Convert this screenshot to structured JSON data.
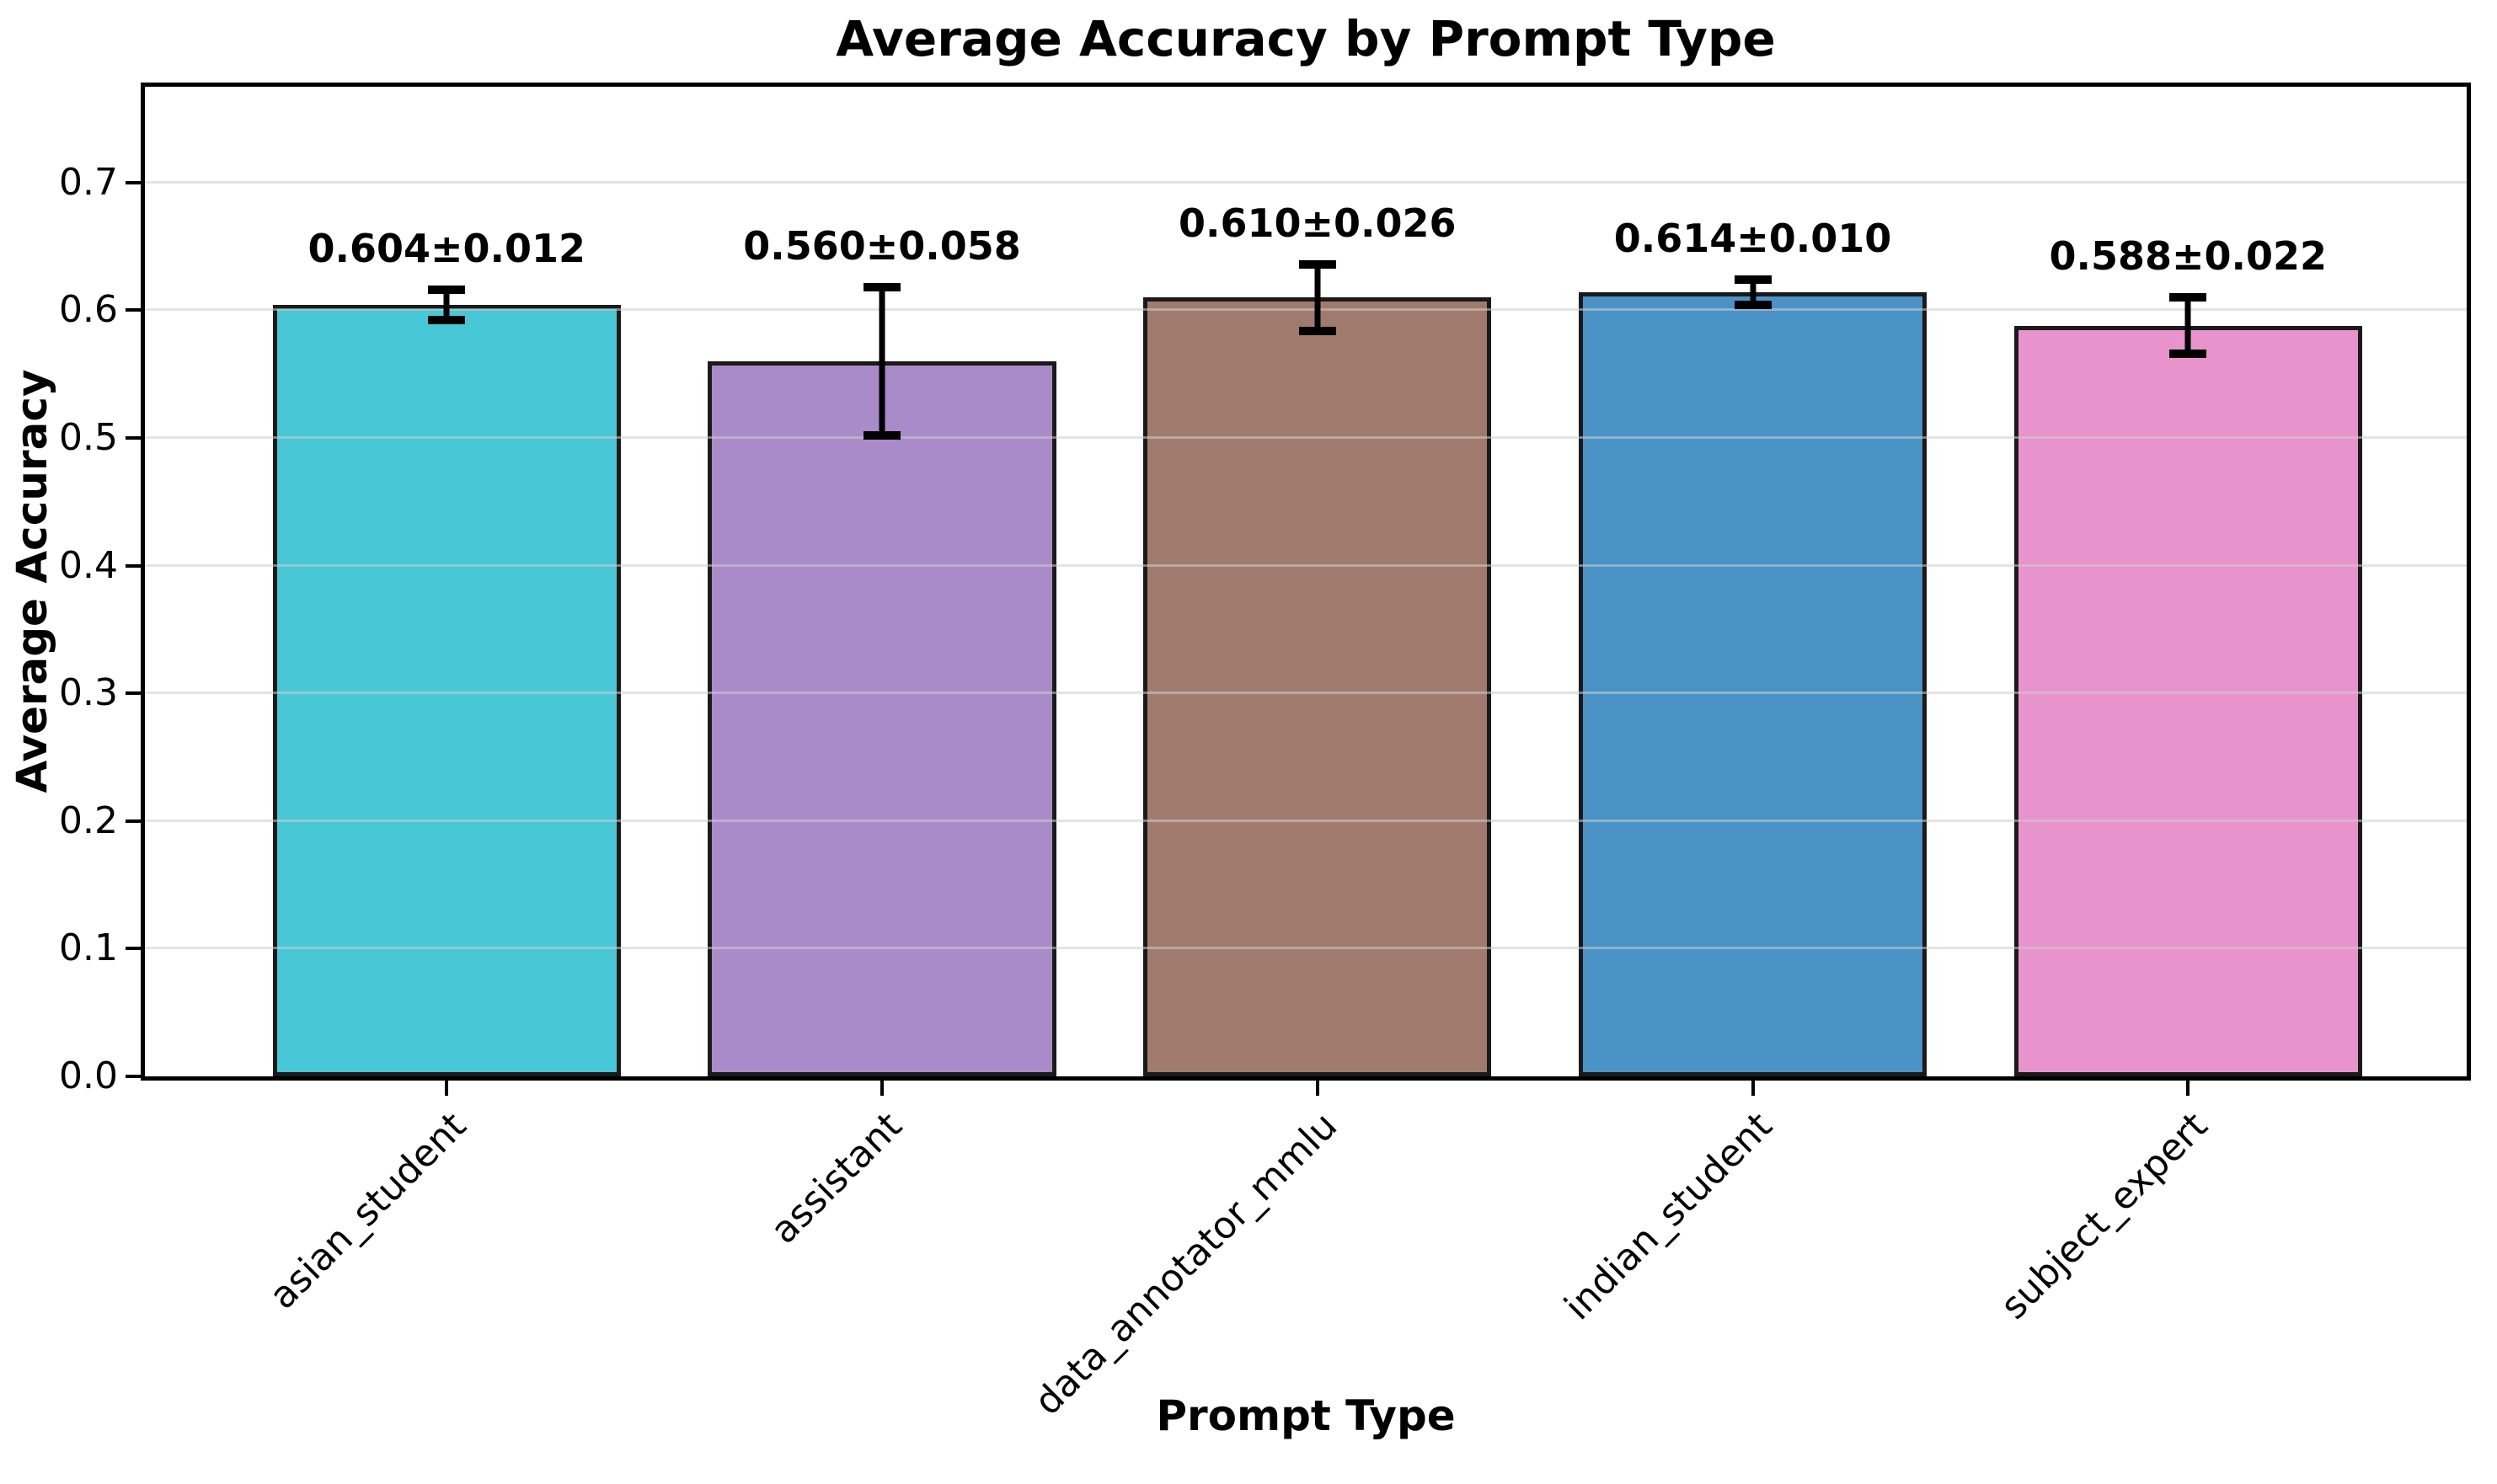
{
  "chart_data": {
    "type": "bar",
    "title": "Average Accuracy by Prompt Type",
    "xlabel": "Prompt Type",
    "ylabel": "Average Accuracy",
    "categories": [
      "asian_student",
      "assistant",
      "data_annotator_mmlu",
      "indian_student",
      "subject_expert"
    ],
    "values": [
      0.604,
      0.56,
      0.61,
      0.614,
      0.588
    ],
    "errors": [
      0.012,
      0.058,
      0.026,
      0.01,
      0.022
    ],
    "bar_labels": [
      "0.604±0.012",
      "0.560±0.058",
      "0.610±0.026",
      "0.614±0.010",
      "0.588±0.022"
    ],
    "bar_colors": [
      "#48c7d6",
      "#a98bc9",
      "#a17a6e",
      "#4b92c7",
      "#e893cb"
    ],
    "bar_edge_color": "#1a1a1a",
    "error_bar_color": "#000000",
    "ylim": [
      0,
      0.775
    ],
    "yticks": [
      0.0,
      0.1,
      0.2,
      0.3,
      0.4,
      0.5,
      0.6,
      0.7
    ],
    "ytick_labels": [
      "0.0",
      "0.1",
      "0.2",
      "0.3",
      "0.4",
      "0.5",
      "0.6",
      "0.7"
    ],
    "xtick_rotation_deg": 45,
    "grid": "horizontal",
    "grid_color": "rgba(205,205,205,0.55)",
    "legend": "none",
    "background_color": "#ffffff",
    "axes_frame_color": "#000000"
  }
}
